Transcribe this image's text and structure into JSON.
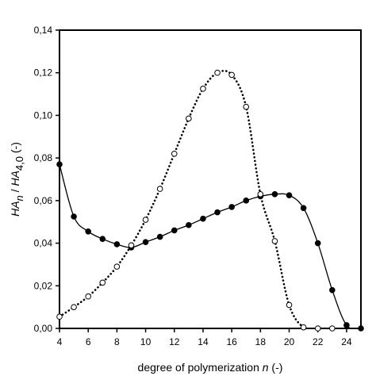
{
  "chart_data": {
    "type": "line",
    "title": "",
    "xlabel": {
      "parts": [
        {
          "text": "degree of polymerization ",
          "style": "normal"
        },
        {
          "text": "n",
          "style": "italic"
        },
        {
          "text": " (-)",
          "style": "normal"
        }
      ]
    },
    "ylabel": {
      "parts": [
        {
          "text": "HA",
          "style": "italic"
        },
        {
          "text": "n",
          "style": "italic-sub"
        },
        {
          "text": " / ",
          "style": "normal"
        },
        {
          "text": "HA",
          "style": "italic"
        },
        {
          "text": "4,0",
          "style": "sub"
        },
        {
          "text": "  (-)",
          "style": "normal"
        }
      ]
    },
    "xlim": [
      4,
      25
    ],
    "ylim": [
      0,
      0.14
    ],
    "xticks": [
      4,
      6,
      8,
      10,
      12,
      14,
      16,
      18,
      20,
      22,
      24
    ],
    "xtick_labels": [
      "4",
      "6",
      "8",
      "10",
      "12",
      "14",
      "16",
      "18",
      "20",
      "22",
      "24"
    ],
    "yticks": [
      0,
      0.02,
      0.04,
      0.06,
      0.08,
      0.1,
      0.12,
      0.14
    ],
    "ytick_labels": [
      "0,00",
      "0,02",
      "0,04",
      "0,06",
      "0,08",
      "0,10",
      "0,12",
      "0,14"
    ],
    "grid": false,
    "legend": "none",
    "series": [
      {
        "marker": "filled-circle",
        "line": "solid",
        "color": "#000000",
        "x": [
          4,
          5,
          6,
          7,
          8,
          9,
          10,
          11,
          12,
          13,
          14,
          15,
          16,
          17,
          18,
          19,
          20,
          21,
          22,
          23,
          24,
          25
        ],
        "y": [
          0.077,
          0.0525,
          0.0455,
          0.042,
          0.0395,
          0.038,
          0.0405,
          0.043,
          0.046,
          0.0485,
          0.0515,
          0.0545,
          0.057,
          0.06,
          0.062,
          0.063,
          0.0625,
          0.0565,
          0.04,
          0.018,
          0.0015,
          0.0
        ]
      },
      {
        "marker": "open-circle",
        "line": "dotted",
        "color": "#000000",
        "x": [
          4,
          5,
          6,
          7,
          8,
          9,
          10,
          11,
          12,
          13,
          14,
          15,
          16,
          17,
          18,
          19,
          20,
          21,
          22,
          23
        ],
        "y": [
          0.0055,
          0.01,
          0.015,
          0.0215,
          0.029,
          0.039,
          0.051,
          0.0655,
          0.082,
          0.0985,
          0.1125,
          0.12,
          0.119,
          0.104,
          0.063,
          0.041,
          0.011,
          0.0005,
          0.0,
          0.0
        ]
      }
    ]
  }
}
